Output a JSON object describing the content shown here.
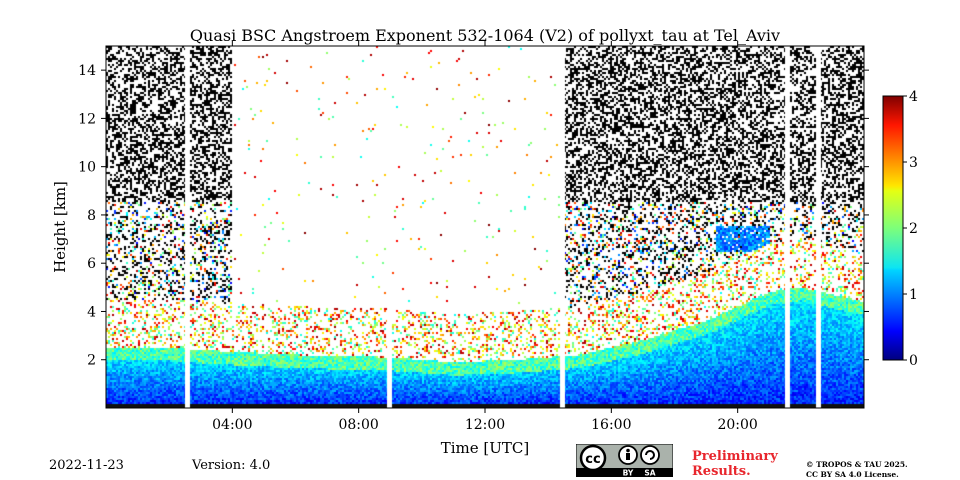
{
  "title": "Quasi BSC Angstroem Exponent 532-1064 (V2) of pollyxt_tau at Tel_Aviv",
  "footer": {
    "date": "2022-11-23",
    "version": "Version: 4.0",
    "preliminary_line1": "Preliminary",
    "preliminary_line2": "Results.",
    "copyright_line1": "© TROPOS & TAU 2025.",
    "copyright_line2": "CC BY SA 4.0 License.",
    "license_badge": {
      "cc": "cc",
      "by": "BY",
      "sa": "SA",
      "icon": "creative-commons-icon"
    }
  },
  "chart_data": {
    "type": "heatmap",
    "xlabel": "Time [UTC]",
    "ylabel": "Height [km]",
    "xlim": [
      0,
      24
    ],
    "ylim": [
      0,
      15
    ],
    "x_ticks": [
      4,
      8,
      12,
      16,
      20
    ],
    "x_tick_labels": [
      "04:00",
      "08:00",
      "12:00",
      "16:00",
      "20:00"
    ],
    "y_ticks": [
      2,
      4,
      6,
      8,
      10,
      12,
      14
    ],
    "y_tick_labels": [
      "2",
      "4",
      "6",
      "8",
      "10",
      "12",
      "14"
    ],
    "colorbar": {
      "range": [
        0,
        4
      ],
      "ticks": [
        0,
        1,
        2,
        3,
        4
      ],
      "tick_labels": [
        "0",
        "1",
        "2",
        "3",
        "4"
      ],
      "colormap": "jet"
    },
    "grid": false,
    "data_gaps_hours": [
      2.55,
      8.95,
      14.45,
      21.55,
      22.55
    ],
    "boundary_layer_top_km": [
      [
        0,
        2.3
      ],
      [
        2,
        2.3
      ],
      [
        3,
        2.2
      ],
      [
        6,
        2.0
      ],
      [
        9,
        1.9
      ],
      [
        11,
        1.7
      ],
      [
        13,
        1.8
      ],
      [
        15,
        2.0
      ],
      [
        17,
        2.6
      ],
      [
        19,
        3.4
      ],
      [
        20,
        4.0
      ],
      [
        21,
        4.6
      ],
      [
        22,
        4.8
      ],
      [
        24,
        4.2
      ]
    ],
    "elevated_layer": {
      "start_hour": 19.3,
      "end_hour": 21.0,
      "base_km": 6.5,
      "top_km": 7.5,
      "value": 1.0
    },
    "noisy_periods_hours": [
      [
        0,
        4
      ],
      [
        14.5,
        24
      ]
    ]
  }
}
